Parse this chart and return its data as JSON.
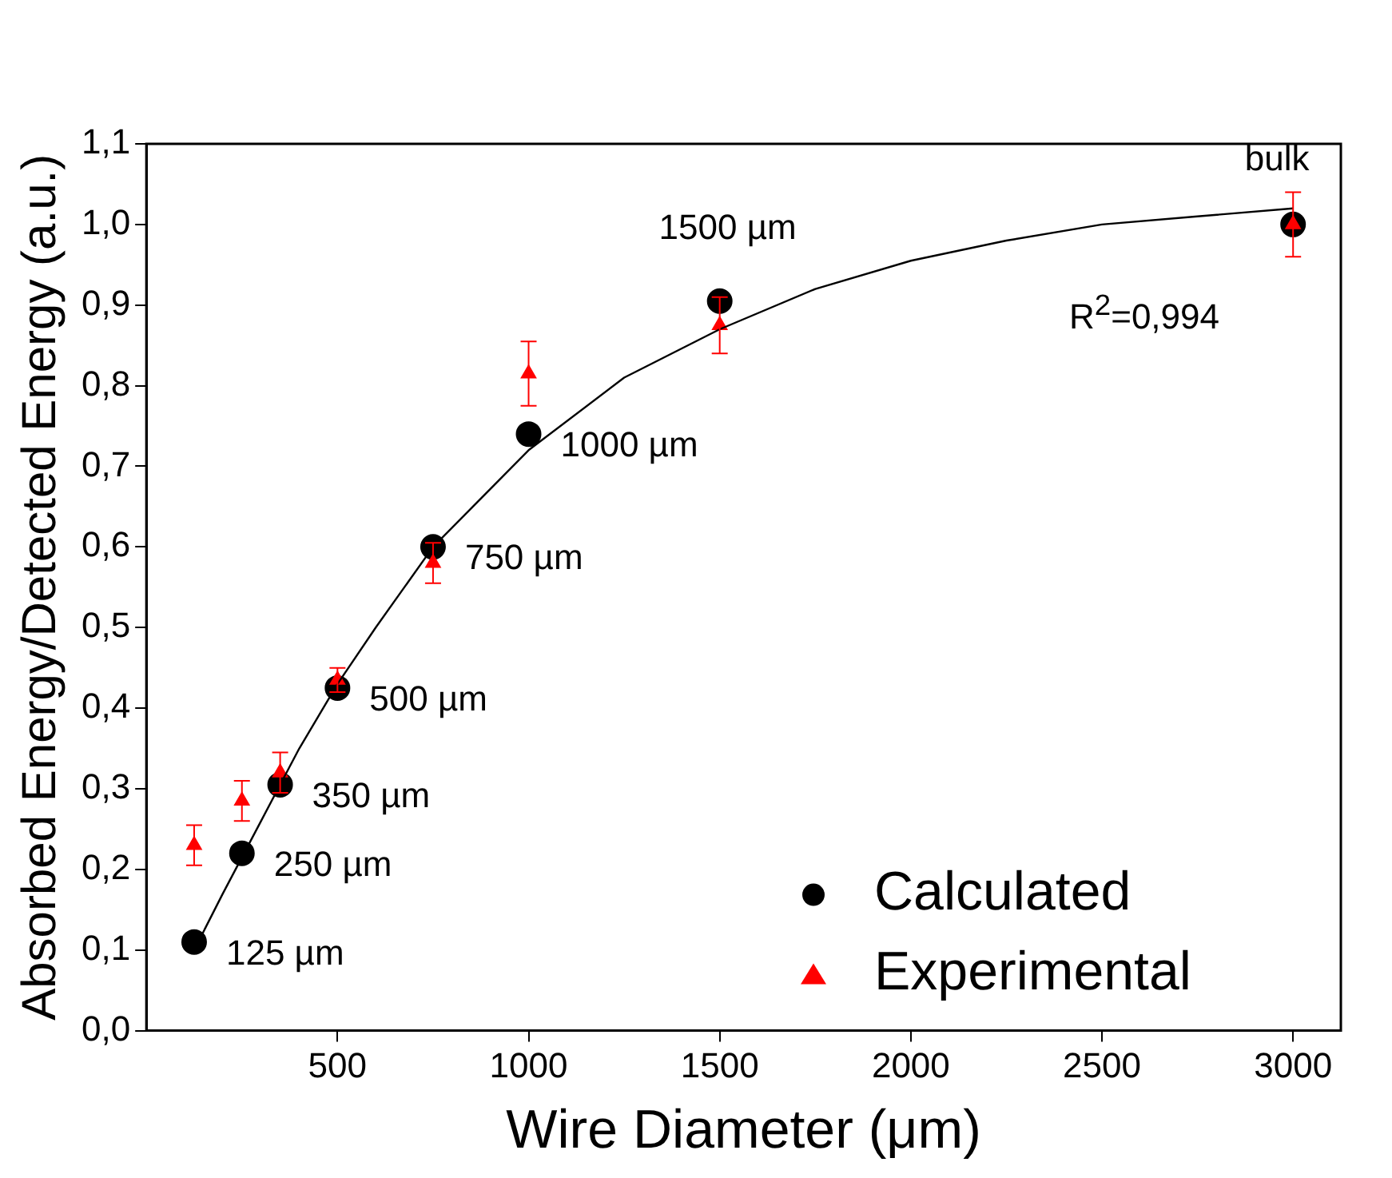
{
  "chart_data": {
    "type": "scatter",
    "xlabel": "Wire Diameter (μm)",
    "ylabel": "Absorbed Energy/Detected Energy (a.u.)",
    "xlim": [
      0,
      3125
    ],
    "xticks": [
      500,
      1000,
      1500,
      2000,
      2500,
      3000
    ],
    "ylim": [
      0,
      1.1
    ],
    "yticks": [
      {
        "value": 0,
        "label": "0,0"
      },
      {
        "value": 0.1,
        "label": "0,1"
      },
      {
        "value": 0.2,
        "label": "0,2"
      },
      {
        "value": 0.3,
        "label": "0,3"
      },
      {
        "value": 0.4,
        "label": "0,4"
      },
      {
        "value": 0.5,
        "label": "0,5"
      },
      {
        "value": 0.6,
        "label": "0,6"
      },
      {
        "value": 0.7,
        "label": "0,7"
      },
      {
        "value": 0.8,
        "label": "0,8"
      },
      {
        "value": 0.9,
        "label": "0,9"
      },
      {
        "value": 1.0,
        "label": "1,0"
      },
      {
        "value": 1.1,
        "label": "1,1"
      }
    ],
    "grid": false,
    "legend": "bottom right",
    "series": [
      {
        "type": "line",
        "color": "#000000",
        "marker": "none",
        "line_style": "solid",
        "x": [
          125,
          200,
          300,
          400,
          500,
          600,
          750,
          1000,
          1250,
          1500,
          1750,
          2000,
          2250,
          2500,
          2750,
          3000
        ],
        "values": [
          0.1,
          0.17,
          0.26,
          0.35,
          0.43,
          0.5,
          0.6,
          0.72,
          0.81,
          0.87,
          0.92,
          0.955,
          0.98,
          1.0,
          1.01,
          1.02
        ]
      },
      {
        "name": "Calculated",
        "color": "#000000",
        "marker": "circle",
        "x": [
          125,
          250,
          350,
          500,
          750,
          1000,
          1500,
          3000
        ],
        "values": [
          0.11,
          0.22,
          0.305,
          0.425,
          0.6,
          0.74,
          0.905,
          1.0
        ]
      },
      {
        "name": "Experimental",
        "color": "#ff0000",
        "marker": "triangle",
        "x": [
          125,
          250,
          350,
          500,
          750,
          1000,
          1500,
          3000
        ],
        "values": [
          0.23,
          0.285,
          0.32,
          0.435,
          0.58,
          0.815,
          0.875,
          1.0
        ],
        "errors": [
          0.025,
          0.025,
          0.025,
          0.015,
          0.025,
          0.04,
          0.035,
          0.04
        ]
      }
    ],
    "annotations": [
      {
        "text": "125 µm",
        "x": 125,
        "y": 0.11
      },
      {
        "text": "250 µm",
        "x": 250,
        "y": 0.22
      },
      {
        "text": "350 µm",
        "x": 350,
        "y": 0.305
      },
      {
        "text": "500 µm",
        "x": 500,
        "y": 0.425
      },
      {
        "text": "750 µm",
        "x": 750,
        "y": 0.6
      },
      {
        "text": "1000 µm",
        "x": 1000,
        "y": 0.74
      },
      {
        "text": "1500 µm",
        "x": 1500,
        "y": 0.905
      },
      {
        "text": "bulk",
        "x": 3000,
        "y": 1.0
      },
      "R$^{2}$=0,994"
    ]
  }
}
